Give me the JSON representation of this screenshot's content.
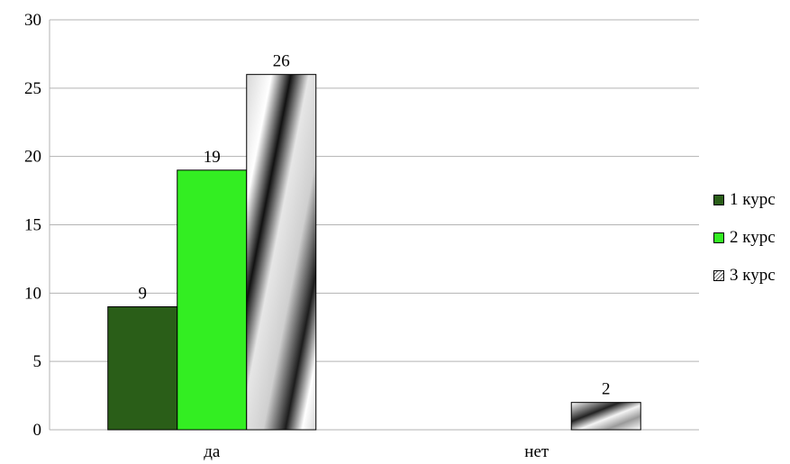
{
  "chart_data": {
    "type": "bar",
    "categories": [
      "да",
      "нет"
    ],
    "series": [
      {
        "name": "1 курс",
        "values": [
          9,
          null
        ],
        "color": "#2a5e18"
      },
      {
        "name": "2 курс",
        "values": [
          19,
          null
        ],
        "color": "#33ee22"
      },
      {
        "name": "3 курс",
        "values": [
          26,
          2
        ],
        "color": "#bdbdbd",
        "pattern": "diagonal-gradient-stripes"
      }
    ],
    "data_labels": true,
    "ylim": [
      0,
      30
    ],
    "yticks": [
      0,
      5,
      10,
      15,
      20,
      25,
      30
    ],
    "grid": true,
    "legend_position": "right"
  }
}
